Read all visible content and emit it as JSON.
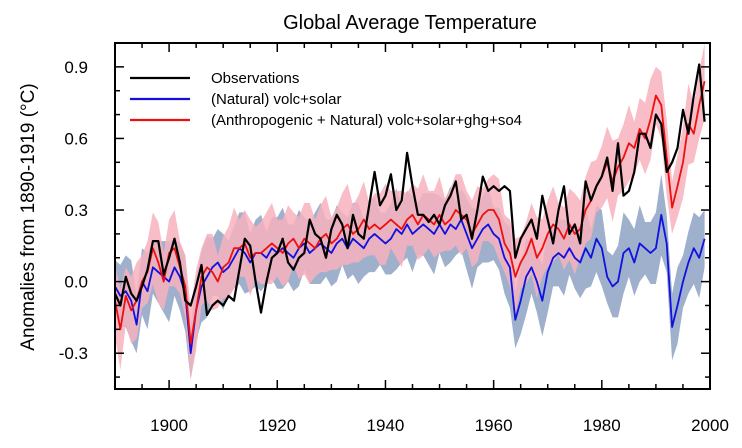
{
  "chart_data": {
    "type": "line",
    "title": "Global Average Temperature",
    "xlabel": "",
    "ylabel": "Anomalies from 1890-1919 (°C)",
    "xlim": [
      1890,
      2000
    ],
    "ylim": [
      -0.45,
      1.0
    ],
    "xticks": [
      1900,
      1920,
      1940,
      1960,
      1980,
      2000
    ],
    "yticks": [
      -0.3,
      0.0,
      0.3,
      0.6,
      0.9
    ],
    "ytick_labels": [
      "-0.3",
      "0.0",
      "0.3",
      "0.6",
      "0.9"
    ],
    "grid": false,
    "legend_position": "top-left",
    "x": [
      1890,
      1891,
      1892,
      1893,
      1894,
      1895,
      1896,
      1897,
      1898,
      1899,
      1900,
      1901,
      1902,
      1903,
      1904,
      1905,
      1906,
      1907,
      1908,
      1909,
      1910,
      1911,
      1912,
      1913,
      1914,
      1915,
      1916,
      1917,
      1918,
      1919,
      1920,
      1921,
      1922,
      1923,
      1924,
      1925,
      1926,
      1927,
      1928,
      1929,
      1930,
      1931,
      1932,
      1933,
      1934,
      1935,
      1936,
      1937,
      1938,
      1939,
      1940,
      1941,
      1942,
      1943,
      1944,
      1945,
      1946,
      1947,
      1948,
      1949,
      1950,
      1951,
      1952,
      1953,
      1954,
      1955,
      1956,
      1957,
      1958,
      1959,
      1960,
      1961,
      1962,
      1963,
      1964,
      1965,
      1966,
      1967,
      1968,
      1969,
      1970,
      1971,
      1972,
      1973,
      1974,
      1975,
      1976,
      1977,
      1978,
      1979,
      1980,
      1981,
      1982,
      1983,
      1984,
      1985,
      1986,
      1987,
      1988,
      1989,
      1990,
      1991,
      1992,
      1993,
      1994,
      1995,
      1996,
      1997,
      1998,
      1999
    ],
    "series": [
      {
        "name": "Observations",
        "color": "#000000",
        "values": [
          -0.05,
          -0.1,
          0.02,
          -0.05,
          -0.08,
          -0.02,
          0.05,
          0.17,
          0.17,
          0.03,
          0.1,
          0.18,
          0.08,
          -0.08,
          -0.1,
          -0.02,
          0.07,
          -0.14,
          -0.1,
          -0.08,
          -0.1,
          -0.06,
          -0.08,
          0.05,
          0.18,
          0.15,
          0.0,
          -0.13,
          0.0,
          0.1,
          0.12,
          0.18,
          0.08,
          0.05,
          0.1,
          0.12,
          0.26,
          0.2,
          0.18,
          0.1,
          0.22,
          0.28,
          0.24,
          0.14,
          0.28,
          0.2,
          0.18,
          0.32,
          0.46,
          0.32,
          0.36,
          0.45,
          0.3,
          0.34,
          0.54,
          0.4,
          0.28,
          0.28,
          0.25,
          0.28,
          0.24,
          0.32,
          0.36,
          0.42,
          0.26,
          0.28,
          0.18,
          0.3,
          0.44,
          0.38,
          0.4,
          0.38,
          0.4,
          0.38,
          0.1,
          0.18,
          0.22,
          0.26,
          0.18,
          0.36,
          0.26,
          0.16,
          0.3,
          0.4,
          0.2,
          0.24,
          0.16,
          0.42,
          0.34,
          0.4,
          0.44,
          0.52,
          0.38,
          0.58,
          0.36,
          0.38,
          0.46,
          0.62,
          0.62,
          0.56,
          0.7,
          0.66,
          0.46,
          0.5,
          0.56,
          0.72,
          0.62,
          0.78,
          0.91,
          0.67
        ]
      },
      {
        "name": "(Natural) volc+solar",
        "color": "#1010e0",
        "values": [
          -0.02,
          -0.06,
          -0.04,
          -0.08,
          -0.18,
          0.0,
          -0.04,
          0.06,
          0.04,
          0.02,
          0.0,
          0.06,
          0.02,
          -0.05,
          -0.3,
          -0.12,
          -0.02,
          0.02,
          0.06,
          0.08,
          0.04,
          0.06,
          0.1,
          0.14,
          0.12,
          0.08,
          0.12,
          0.12,
          0.1,
          0.14,
          0.12,
          0.14,
          0.12,
          0.1,
          0.14,
          0.16,
          0.12,
          0.14,
          0.16,
          0.14,
          0.12,
          0.16,
          0.18,
          0.14,
          0.18,
          0.16,
          0.14,
          0.18,
          0.2,
          0.18,
          0.16,
          0.18,
          0.22,
          0.2,
          0.24,
          0.2,
          0.22,
          0.24,
          0.22,
          0.2,
          0.24,
          0.2,
          0.24,
          0.22,
          0.26,
          0.2,
          0.14,
          0.18,
          0.22,
          0.24,
          0.2,
          0.18,
          0.1,
          0.06,
          -0.16,
          -0.08,
          0.02,
          0.06,
          0.0,
          -0.08,
          0.04,
          0.1,
          0.12,
          0.1,
          0.14,
          0.1,
          0.08,
          0.14,
          0.1,
          0.18,
          0.14,
          0.02,
          -0.02,
          0.0,
          0.12,
          0.14,
          0.08,
          0.16,
          0.14,
          0.12,
          0.14,
          0.28,
          0.16,
          -0.19,
          -0.1,
          0.0,
          0.08,
          0.14,
          0.1,
          0.18
        ]
      },
      {
        "name": "(Anthropogenic + Natural) volc+solar+ghg+so4",
        "color": "#ee1010",
        "values": [
          -0.08,
          -0.2,
          -0.06,
          -0.12,
          -0.08,
          0.0,
          0.04,
          0.14,
          0.08,
          0.0,
          0.12,
          0.14,
          0.06,
          -0.02,
          -0.26,
          -0.12,
          0.02,
          0.06,
          0.04,
          0.0,
          0.06,
          0.08,
          0.14,
          0.14,
          0.16,
          0.1,
          0.12,
          0.12,
          0.14,
          0.16,
          0.14,
          0.12,
          0.16,
          0.18,
          0.14,
          0.18,
          0.16,
          0.14,
          0.18,
          0.2,
          0.16,
          0.18,
          0.22,
          0.24,
          0.2,
          0.22,
          0.26,
          0.22,
          0.24,
          0.22,
          0.24,
          0.26,
          0.24,
          0.22,
          0.26,
          0.28,
          0.24,
          0.28,
          0.26,
          0.24,
          0.28,
          0.24,
          0.26,
          0.3,
          0.28,
          0.26,
          0.2,
          0.24,
          0.28,
          0.3,
          0.3,
          0.26,
          0.16,
          0.12,
          0.02,
          0.08,
          0.12,
          0.18,
          0.1,
          0.14,
          0.2,
          0.24,
          0.22,
          0.18,
          0.24,
          0.2,
          0.22,
          0.3,
          0.34,
          0.4,
          0.44,
          0.5,
          0.42,
          0.48,
          0.52,
          0.58,
          0.56,
          0.64,
          0.6,
          0.68,
          0.78,
          0.74,
          0.52,
          0.31,
          0.4,
          0.5,
          0.66,
          0.62,
          0.74,
          0.84
        ]
      }
    ],
    "bands": [
      {
        "name": "Natural ensemble range",
        "color": "#9fb0cc",
        "spread": 0.11
      },
      {
        "name": "Anthropogenic + Natural ensemble range",
        "color": "#f7b2bd",
        "spread": 0.11
      }
    ]
  }
}
